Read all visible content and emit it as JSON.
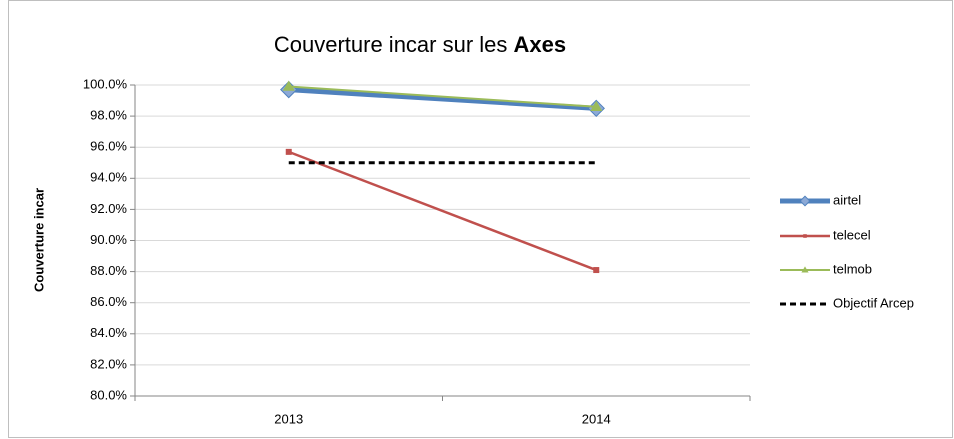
{
  "chart_data": {
    "type": "line",
    "title": "Couverture incar sur les",
    "title_emphasis": "Axes",
    "y_label": "Couverture incar",
    "categories": [
      "2013",
      "2014"
    ],
    "series": [
      {
        "name": "airtel",
        "color": "#4f81bd",
        "width": 5,
        "marker": "diamond",
        "values": [
          99.7,
          98.5
        ]
      },
      {
        "name": "telecel",
        "color": "#c0504d",
        "width": 2.5,
        "marker": "square",
        "values": [
          95.7,
          88.1
        ]
      },
      {
        "name": "telmob",
        "color": "#9bbb59",
        "width": 2,
        "marker": "triangle",
        "values": [
          99.9,
          98.6
        ]
      },
      {
        "name": "Objectif Arcep",
        "color": "#000000",
        "width": 3,
        "dash": true,
        "values": [
          95,
          95
        ]
      }
    ],
    "ylim": [
      80,
      100
    ],
    "yticks": [
      {
        "value": 80,
        "label": "80.0%"
      },
      {
        "value": 82,
        "label": "82.0%"
      },
      {
        "value": 84,
        "label": "84.0%"
      },
      {
        "value": 86,
        "label": "86.0%"
      },
      {
        "value": 88,
        "label": "88.0%"
      },
      {
        "value": 90,
        "label": "90.0%"
      },
      {
        "value": 92,
        "label": "92.0%"
      },
      {
        "value": 94,
        "label": "94.0%"
      },
      {
        "value": 96,
        "label": "96.0%"
      },
      {
        "value": 98,
        "label": "98.0%"
      },
      {
        "value": 100,
        "label": "100.0%"
      }
    ],
    "grid": true,
    "legend": "right"
  }
}
